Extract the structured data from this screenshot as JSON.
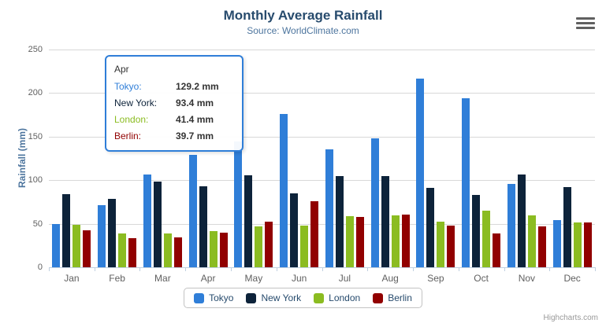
{
  "chart": {
    "title": "Monthly Average Rainfall",
    "subtitle": "Source: WorldClimate.com",
    "y_axis_title": "Rainfall (mm)",
    "credits": "Highcharts.com"
  },
  "tooltip": {
    "header": "Apr",
    "rows": [
      {
        "label": "Tokyo:",
        "value": "129.2 mm",
        "color": "#2f7ed8"
      },
      {
        "label": "New York:",
        "value": "93.4 mm",
        "color": "#0d233a"
      },
      {
        "label": "London:",
        "value": "41.4 mm",
        "color": "#8bbc21"
      },
      {
        "label": "Berlin:",
        "value": "39.7 mm",
        "color": "#910000"
      }
    ]
  },
  "chart_data": {
    "type": "bar",
    "title": "Monthly Average Rainfall",
    "subtitle": "Source: WorldClimate.com",
    "categories": [
      "Jan",
      "Feb",
      "Mar",
      "Apr",
      "May",
      "Jun",
      "Jul",
      "Aug",
      "Sep",
      "Oct",
      "Nov",
      "Dec"
    ],
    "series": [
      {
        "name": "Tokyo",
        "color": "#2f7ed8",
        "values": [
          49.9,
          71.5,
          106.4,
          129.2,
          144.0,
          176.0,
          135.6,
          148.5,
          216.4,
          194.1,
          95.6,
          54.4
        ]
      },
      {
        "name": "New York",
        "color": "#0d233a",
        "values": [
          83.6,
          78.8,
          98.5,
          93.4,
          106.0,
          84.5,
          105.0,
          104.3,
          91.2,
          83.5,
          106.6,
          92.3
        ]
      },
      {
        "name": "London",
        "color": "#8bbc21",
        "values": [
          48.9,
          38.8,
          39.3,
          41.4,
          47.0,
          48.3,
          59.0,
          59.6,
          52.4,
          65.2,
          59.3,
          51.2
        ]
      },
      {
        "name": "Berlin",
        "color": "#910000",
        "values": [
          42.4,
          33.2,
          34.5,
          39.7,
          52.6,
          75.5,
          57.4,
          60.4,
          47.6,
          39.1,
          46.8,
          51.1
        ]
      }
    ],
    "xlabel": "",
    "ylabel": "Rainfall (mm)",
    "ylim": [
      0,
      250
    ],
    "yticks": [
      0,
      50,
      100,
      150,
      200,
      250
    ],
    "grid": true,
    "legend_position": "bottom",
    "legend": [
      "Tokyo",
      "New York",
      "London",
      "Berlin"
    ]
  },
  "colors": {
    "title": "#274b6d",
    "subtitle": "#4d759e",
    "axis_label": "#606060",
    "grid_line": "#d8d8d8",
    "axis_line": "#c0d0e0",
    "legend_text": "#274b6d",
    "tooltip_border": "#2f7ed8",
    "credits": "#999999"
  }
}
